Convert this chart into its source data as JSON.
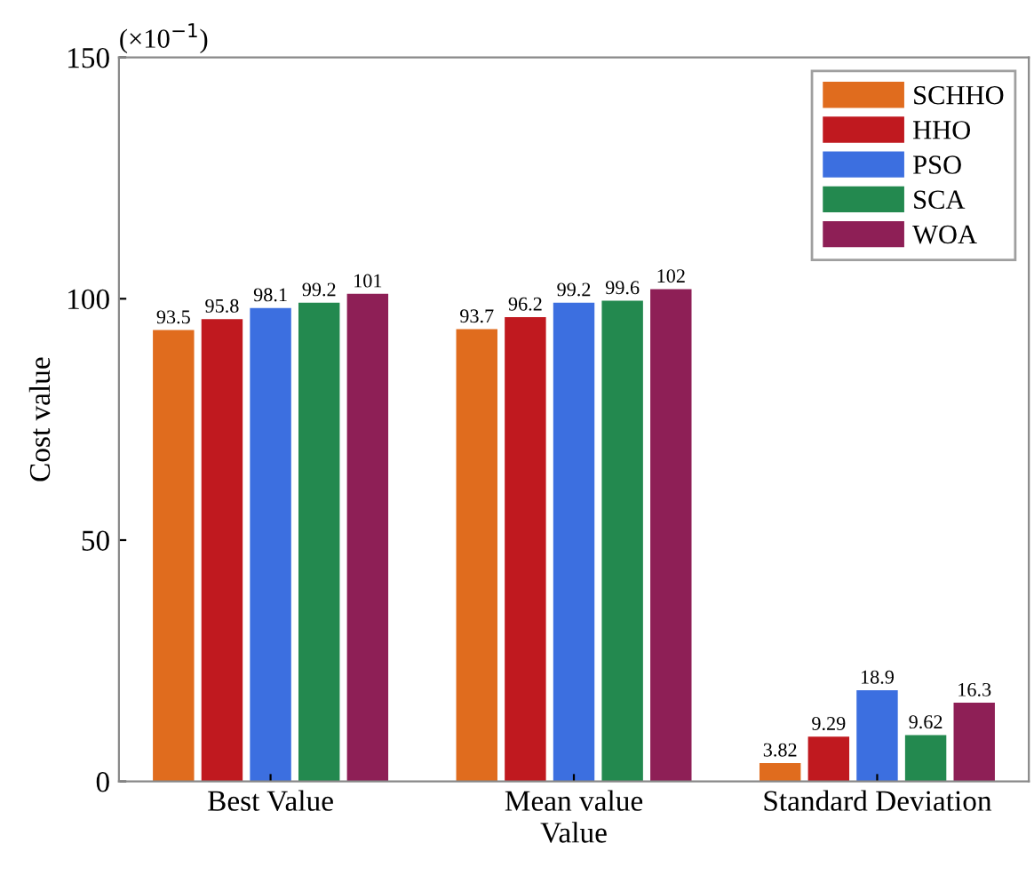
{
  "chart_data": {
    "type": "bar",
    "xlabel": "Value",
    "ylabel": "Cost value",
    "categories": [
      "Best Value",
      "Mean value",
      "Standard Deviation"
    ],
    "series": [
      {
        "name": "SCHHO",
        "color": "#e06c1e",
        "values": [
          93.5,
          93.7,
          3.82
        ]
      },
      {
        "name": "HHO",
        "color": "#c0191f",
        "values": [
          95.8,
          96.2,
          9.29
        ]
      },
      {
        "name": "PSO",
        "color": "#3c6fe0",
        "values": [
          98.1,
          99.2,
          18.9
        ]
      },
      {
        "name": "SCA",
        "color": "#23894f",
        "values": [
          99.2,
          99.6,
          9.62
        ]
      },
      {
        "name": "WOA",
        "color": "#8e1f56",
        "values": [
          101,
          102,
          16.3
        ]
      }
    ],
    "ylim": [
      0,
      150
    ],
    "yticks": [
      0,
      50,
      100,
      150
    ],
    "annotations": [
      "(×10$^{−1}$)"
    ],
    "data_labels": true,
    "legend": "top right",
    "grid": false
  }
}
